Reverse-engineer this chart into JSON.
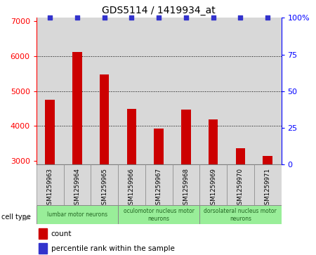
{
  "title": "GDS5114 / 1419934_at",
  "samples": [
    "GSM1259963",
    "GSM1259964",
    "GSM1259965",
    "GSM1259966",
    "GSM1259967",
    "GSM1259968",
    "GSM1259969",
    "GSM1259970",
    "GSM1259971"
  ],
  "counts": [
    4750,
    6130,
    5480,
    4490,
    3920,
    4470,
    4200,
    3360,
    3150
  ],
  "percentiles": [
    100,
    100,
    100,
    100,
    100,
    100,
    100,
    100,
    100
  ],
  "ylim_left": [
    2900,
    7100
  ],
  "ylim_right": [
    0,
    100
  ],
  "yticks_left": [
    3000,
    4000,
    5000,
    6000,
    7000
  ],
  "yticks_right": [
    0,
    25,
    50,
    75,
    100
  ],
  "bar_color": "#cc0000",
  "dot_color": "#3333cc",
  "bar_bottom": 2900,
  "cell_types": [
    {
      "label": "lumbar motor neurons",
      "start": 0,
      "end": 3
    },
    {
      "label": "oculomotor nucleus motor\nneurons",
      "start": 3,
      "end": 6
    },
    {
      "label": "dorsolateral nucleus motor\nneurons",
      "start": 6,
      "end": 9
    }
  ],
  "cell_type_label": "cell type",
  "legend_count_label": "count",
  "legend_percentile_label": "percentile rank within the sample",
  "col_bg": "#d8d8d8",
  "cell_type_bg": "#99ee99",
  "plot_bg": "#ffffff",
  "fig_bg": "#ffffff"
}
